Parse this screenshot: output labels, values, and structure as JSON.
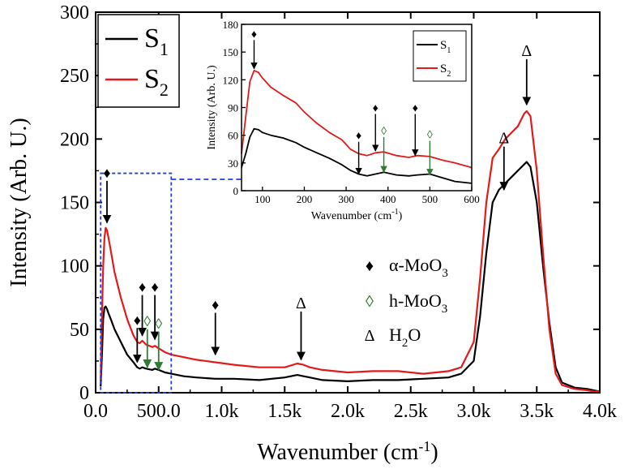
{
  "chart_data": [
    {
      "type": "line",
      "title": "",
      "xlabel": "Wavenumber (cm",
      "xlabel_sup": "-1",
      "xlabel_close": ")",
      "ylabel": "Intensity (Arb. U.)",
      "xlim": [
        0,
        4000
      ],
      "ylim": [
        0,
        300
      ],
      "xticks": [
        0,
        500,
        1000,
        1500,
        2000,
        2500,
        3000,
        3500,
        4000
      ],
      "xtick_labels": [
        "0.0",
        "500.0",
        "1.0k",
        "1.5k",
        "2.0k",
        "2.5k",
        "3.0k",
        "3.5k",
        "4.0k"
      ],
      "yticks": [
        0,
        50,
        100,
        150,
        200,
        250,
        300
      ],
      "ytick_labels": [
        "0",
        "50",
        "100",
        "150",
        "200",
        "250",
        "300"
      ],
      "legend": {
        "placement": "top-left",
        "entries": [
          {
            "base": "S",
            "sub": "1",
            "color": "#000000"
          },
          {
            "base": "S",
            "sub": "2",
            "color": "#e31a1c"
          }
        ]
      },
      "series": [
        {
          "name": "S1",
          "color": "#000000",
          "x": [
            40,
            50,
            60,
            70,
            80,
            90,
            100,
            120,
            150,
            200,
            250,
            300,
            330,
            350,
            370,
            400,
            450,
            470,
            500,
            550,
            600,
            700,
            800,
            950,
            1100,
            1300,
            1500,
            1600,
            1650,
            1700,
            1800,
            2000,
            2200,
            2400,
            2600,
            2800,
            2900,
            3000,
            3050,
            3100,
            3150,
            3200,
            3250,
            3300,
            3350,
            3400,
            3420,
            3450,
            3500,
            3550,
            3600,
            3650,
            3700,
            3800,
            3900,
            3950,
            4000
          ],
          "y": [
            5,
            30,
            58,
            67,
            68,
            66,
            63,
            58,
            50,
            40,
            30,
            24,
            20,
            19,
            20,
            19,
            18,
            19,
            18,
            16,
            15,
            13,
            12,
            11,
            11,
            10,
            12,
            14,
            13,
            12,
            10,
            9,
            10,
            10,
            11,
            12,
            15,
            25,
            60,
            110,
            150,
            160,
            165,
            170,
            175,
            180,
            182,
            178,
            150,
            100,
            55,
            20,
            8,
            4,
            3,
            2,
            1
          ]
        },
        {
          "name": "S2",
          "color": "#e31a1c",
          "x": [
            40,
            50,
            60,
            70,
            80,
            90,
            100,
            120,
            150,
            200,
            250,
            300,
            330,
            350,
            370,
            400,
            450,
            470,
            500,
            550,
            600,
            700,
            800,
            950,
            1100,
            1300,
            1500,
            1600,
            1650,
            1700,
            1800,
            2000,
            2200,
            2400,
            2600,
            2800,
            2900,
            3000,
            3050,
            3100,
            3150,
            3200,
            3250,
            3300,
            3350,
            3400,
            3420,
            3450,
            3500,
            3550,
            3600,
            3650,
            3700,
            3800,
            3900,
            3950,
            4000
          ],
          "y": [
            10,
            60,
            100,
            122,
            130,
            128,
            123,
            112,
            95,
            75,
            58,
            45,
            40,
            39,
            41,
            38,
            36,
            37,
            35,
            32,
            30,
            28,
            26,
            24,
            22,
            20,
            20,
            23,
            22,
            20,
            18,
            16,
            17,
            17,
            15,
            17,
            20,
            40,
            90,
            150,
            185,
            192,
            200,
            205,
            210,
            220,
            222,
            218,
            175,
            110,
            50,
            15,
            6,
            3,
            2,
            1,
            1
          ]
        }
      ],
      "annotations": [
        {
          "symbol": "♦",
          "color": "#000000",
          "x": 90,
          "arrow_from": 167,
          "arrow_to": 134
        },
        {
          "symbol": "♦",
          "color": "#000000",
          "x": 330,
          "arrow_from": 51,
          "arrow_to": 24
        },
        {
          "symbol": "♦",
          "color": "#000000",
          "x": 370,
          "arrow_from": 77,
          "arrow_to": 45
        },
        {
          "symbol": "◊",
          "color": "#2e7d32",
          "x": 410,
          "arrow_from": 50,
          "arrow_to": 20
        },
        {
          "symbol": "♦",
          "color": "#000000",
          "x": 470,
          "arrow_from": 77,
          "arrow_to": 42
        },
        {
          "symbol": "◊",
          "color": "#2e7d32",
          "x": 500,
          "arrow_from": 48,
          "arrow_to": 18
        },
        {
          "symbol": "♦",
          "color": "#000000",
          "x": 950,
          "arrow_from": 63,
          "arrow_to": 30
        },
        {
          "symbol": "Δ",
          "color": "#000000",
          "x": 1630,
          "arrow_from": 64,
          "arrow_to": 26
        },
        {
          "symbol": "Δ",
          "color": "#000000",
          "x": 3240,
          "arrow_from": 194,
          "arrow_to": 160
        },
        {
          "symbol": "Δ",
          "color": "#000000",
          "x": 3420,
          "arrow_from": 263,
          "arrow_to": 227
        }
      ],
      "marker_legend": [
        {
          "symbol": "♦",
          "color": "#000000",
          "label": "α-MoO",
          "sub": "3"
        },
        {
          "symbol": "◊",
          "color": "#2e7d32",
          "label": "h-MoO",
          "sub": "3"
        },
        {
          "symbol": "Δ",
          "color": "#000000",
          "label": "H",
          "sub": "2",
          "label_tail": "O"
        }
      ],
      "highlight_box": {
        "x_range": [
          40,
          600
        ],
        "y_range": [
          0,
          173
        ],
        "color": "#1f3fd6"
      }
    },
    {
      "type": "line",
      "title": "",
      "xlabel": "Wavenumber (cm",
      "xlabel_sup": "-1",
      "xlabel_close": ")",
      "ylabel": "Intensity (Arb. U.)",
      "xlim": [
        50,
        600
      ],
      "ylim": [
        0,
        180
      ],
      "xticks": [
        100,
        200,
        300,
        400,
        500,
        600
      ],
      "xtick_labels": [
        "100",
        "200",
        "300",
        "400",
        "500",
        "600"
      ],
      "yticks": [
        0,
        30,
        60,
        90,
        120,
        150,
        180
      ],
      "ytick_labels": [
        "0",
        "30",
        "60",
        "90",
        "120",
        "150",
        "180"
      ],
      "legend": {
        "placement": "top-right",
        "entries": [
          {
            "base": "S",
            "sub": "1",
            "color": "#000000"
          },
          {
            "base": "S",
            "sub": "2",
            "color": "#e31a1c"
          }
        ]
      },
      "series": [
        {
          "name": "S1",
          "color": "#000000",
          "x": [
            50,
            60,
            70,
            80,
            90,
            100,
            120,
            150,
            180,
            200,
            230,
            260,
            290,
            310,
            330,
            350,
            370,
            390,
            420,
            450,
            470,
            500,
            530,
            560,
            600
          ],
          "y": [
            25,
            40,
            58,
            67,
            66,
            63,
            60,
            57,
            52,
            47,
            41,
            35,
            28,
            22,
            18,
            16,
            18,
            20,
            17,
            16,
            17,
            18,
            14,
            10,
            8
          ]
        },
        {
          "name": "S2",
          "color": "#e31a1c",
          "x": [
            50,
            60,
            70,
            80,
            90,
            100,
            120,
            150,
            180,
            200,
            230,
            260,
            290,
            310,
            330,
            350,
            370,
            390,
            420,
            450,
            470,
            500,
            530,
            560,
            600
          ],
          "y": [
            40,
            80,
            118,
            130,
            128,
            122,
            112,
            103,
            95,
            85,
            73,
            63,
            55,
            45,
            40,
            38,
            41,
            42,
            38,
            36,
            38,
            37,
            33,
            30,
            25
          ]
        }
      ],
      "annotations": [
        {
          "symbol": "♦",
          "color": "#000000",
          "x": 80,
          "arrow_from": 163,
          "arrow_to": 132
        },
        {
          "symbol": "♦",
          "color": "#000000",
          "x": 330,
          "arrow_from": 53,
          "arrow_to": 18
        },
        {
          "symbol": "♦",
          "color": "#000000",
          "x": 370,
          "arrow_from": 83,
          "arrow_to": 43
        },
        {
          "symbol": "◊",
          "color": "#2e7d32",
          "x": 390,
          "arrow_from": 58,
          "arrow_to": 20
        },
        {
          "symbol": "♦",
          "color": "#000000",
          "x": 465,
          "arrow_from": 83,
          "arrow_to": 38
        },
        {
          "symbol": "◊",
          "color": "#2e7d32",
          "x": 500,
          "arrow_from": 54,
          "arrow_to": 17
        }
      ]
    }
  ]
}
